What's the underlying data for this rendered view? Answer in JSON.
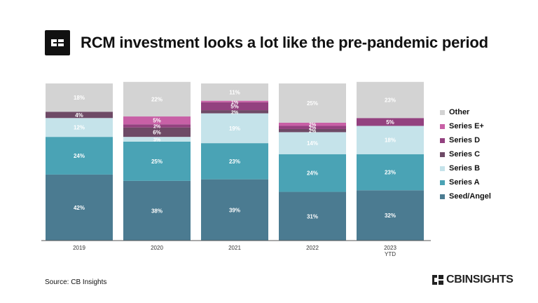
{
  "header": {
    "title": "RCM investment looks a lot like the pre-pandemic period",
    "logo_icon": "cb-logo-icon"
  },
  "footer": {
    "source": "Source: CB Insights",
    "brand": "CBINSIGHTS"
  },
  "colors": {
    "Seed/Angel": "#4b7b91",
    "Series A": "#4aa3b5",
    "Series B": "#c5e3ea",
    "Series C": "#6e4a66",
    "Series D": "#93417f",
    "Series E+": "#c860a6",
    "Other": "#d3d3d3"
  },
  "chart_data": {
    "type": "bar",
    "stacked": true,
    "percent": true,
    "categories": [
      "2019",
      "2020",
      "2021",
      "2022",
      "2023\nYTD"
    ],
    "series": [
      {
        "name": "Seed/Angel",
        "values": [
          42,
          38,
          39,
          31,
          32
        ]
      },
      {
        "name": "Series A",
        "values": [
          24,
          25,
          23,
          24,
          23
        ]
      },
      {
        "name": "Series B",
        "values": [
          12,
          3,
          19,
          14,
          18
        ]
      },
      {
        "name": "Series C",
        "values": [
          4,
          6,
          2,
          2,
          0
        ]
      },
      {
        "name": "Series D",
        "values": [
          0,
          2,
          5,
          2,
          5
        ]
      },
      {
        "name": "Series E+",
        "values": [
          0,
          5,
          1,
          2,
          0
        ]
      },
      {
        "name": "Other",
        "values": [
          18,
          22,
          11,
          25,
          23
        ]
      }
    ],
    "legend_position": "right",
    "legend_order": [
      "Other",
      "Series E+",
      "Series D",
      "Series C",
      "Series B",
      "Series A",
      "Seed/Angel"
    ],
    "ylim": [
      0,
      100
    ],
    "grid": false
  }
}
